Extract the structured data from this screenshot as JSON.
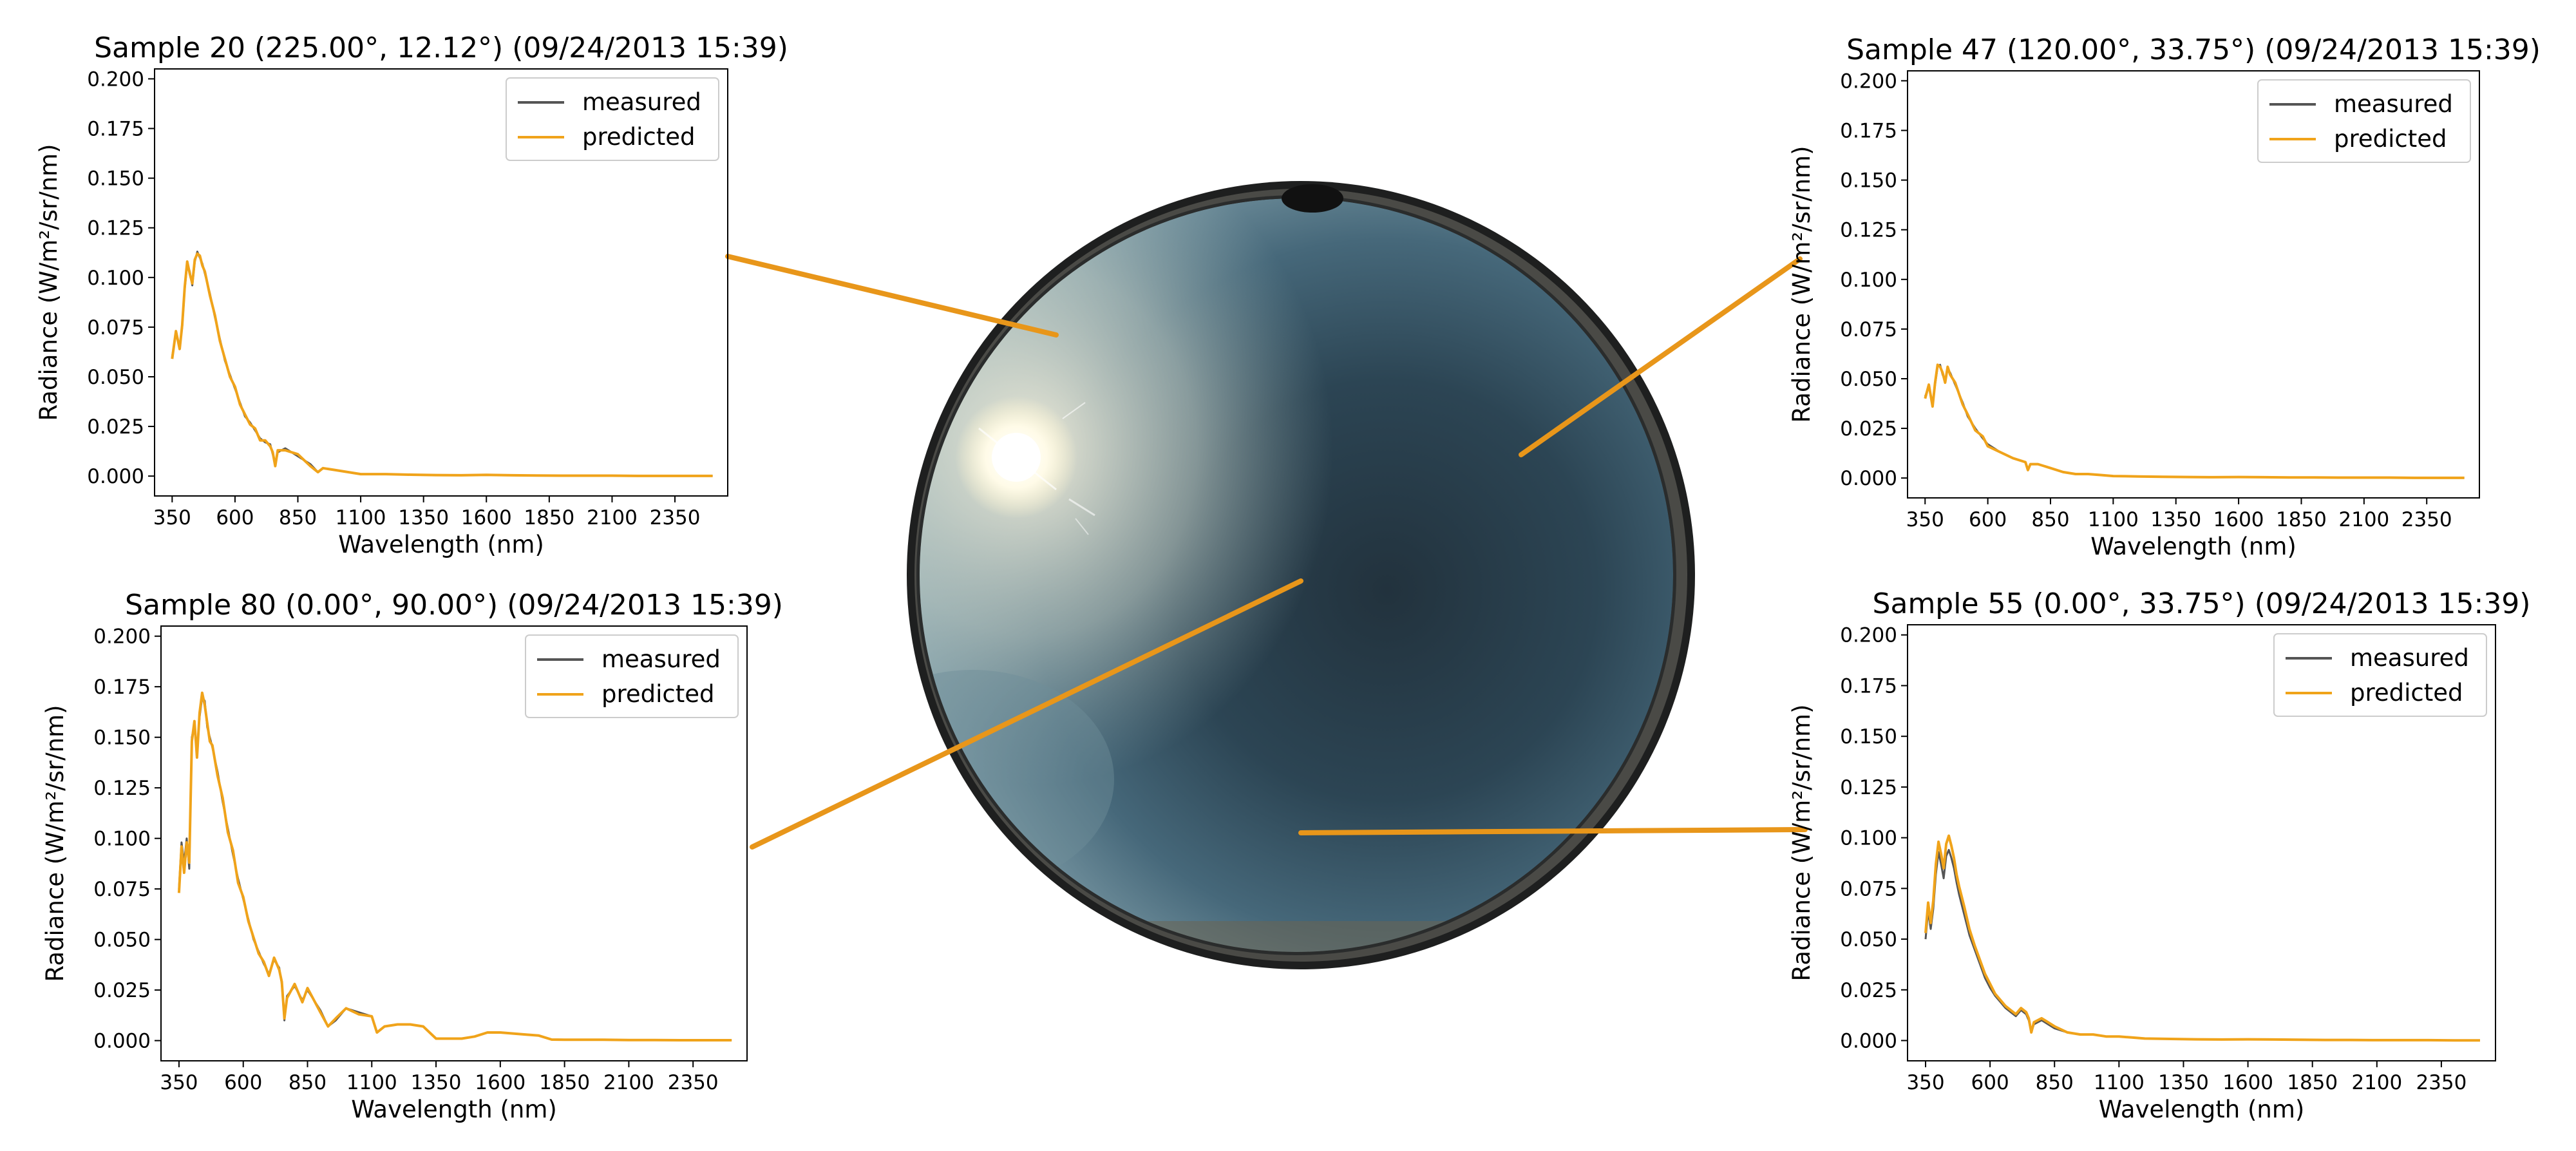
{
  "figure": {
    "background": "#ffffff",
    "measured_color": "#555555",
    "predicted_color": "#f0a31a",
    "connector_color": "#e8961a",
    "sky_image": {
      "type": "fisheye-sky-photo",
      "icons": [
        "sun-icon"
      ]
    }
  },
  "chart_data": [
    {
      "id": "sample-20",
      "type": "line",
      "title": "Sample 20 (225.00°, 12.12°) (09/24/2013 15:39)",
      "xlabel": "Wavelength (nm)",
      "ylabel": "Radiance (W/m²/sr/nm)",
      "xlim": [
        280,
        2560
      ],
      "ylim": [
        -0.01,
        0.205
      ],
      "xticks": [
        "350",
        "600",
        "850",
        "1100",
        "1350",
        "1600",
        "1850",
        "2100",
        "2350"
      ],
      "yticks": [
        "0.000",
        "0.025",
        "0.050",
        "0.075",
        "0.100",
        "0.125",
        "0.150",
        "0.175",
        "0.200"
      ],
      "legend": {
        "position": "top-right",
        "entries": [
          "measured",
          "predicted"
        ]
      },
      "series": [
        {
          "name": "measured",
          "x": [
            350,
            365,
            380,
            390,
            400,
            410,
            420,
            430,
            440,
            450,
            460,
            470,
            480,
            500,
            520,
            540,
            560,
            580,
            600,
            620,
            640,
            660,
            680,
            700,
            720,
            740,
            750,
            760,
            770,
            800,
            850,
            900,
            930,
            950,
            1000,
            1050,
            1100,
            1150,
            1200,
            1300,
            1400,
            1500,
            1600,
            1700,
            1800,
            1900,
            2000,
            2100,
            2200,
            2300,
            2400,
            2500
          ],
          "y": [
            0.06,
            0.072,
            0.065,
            0.075,
            0.094,
            0.107,
            0.103,
            0.096,
            0.108,
            0.113,
            0.11,
            0.107,
            0.102,
            0.092,
            0.08,
            0.069,
            0.058,
            0.051,
            0.044,
            0.037,
            0.03,
            0.027,
            0.023,
            0.019,
            0.017,
            0.016,
            0.011,
            0.006,
            0.012,
            0.014,
            0.01,
            0.006,
            0.002,
            0.004,
            0.003,
            0.002,
            0.001,
            0.001,
            0.001,
            0.0007,
            0.0005,
            0.0004,
            0.0006,
            0.0004,
            0.0003,
            0.0002,
            0.0002,
            0.0002,
            0.0001,
            0.0001,
            0.0001,
            0.0001
          ]
        },
        {
          "name": "predicted",
          "x": [
            350,
            365,
            380,
            390,
            400,
            410,
            420,
            430,
            440,
            450,
            460,
            470,
            480,
            500,
            520,
            540,
            560,
            580,
            600,
            620,
            640,
            660,
            680,
            700,
            720,
            740,
            750,
            760,
            770,
            800,
            850,
            900,
            930,
            950,
            1000,
            1050,
            1100,
            1150,
            1200,
            1300,
            1400,
            1500,
            1600,
            1700,
            1800,
            1900,
            2000,
            2100,
            2200,
            2300,
            2400,
            2500
          ],
          "y": [
            0.059,
            0.073,
            0.064,
            0.076,
            0.095,
            0.108,
            0.102,
            0.097,
            0.109,
            0.112,
            0.111,
            0.106,
            0.103,
            0.091,
            0.081,
            0.068,
            0.059,
            0.05,
            0.045,
            0.036,
            0.031,
            0.026,
            0.024,
            0.018,
            0.018,
            0.015,
            0.012,
            0.005,
            0.013,
            0.013,
            0.011,
            0.005,
            0.002,
            0.004,
            0.003,
            0.002,
            0.001,
            0.001,
            0.001,
            0.0007,
            0.0005,
            0.0004,
            0.0006,
            0.0004,
            0.0003,
            0.0002,
            0.0002,
            0.0002,
            0.0001,
            0.0001,
            0.0001,
            0.0001
          ]
        }
      ]
    },
    {
      "id": "sample-80",
      "type": "line",
      "title": "Sample 80 (0.00°, 90.00°) (09/24/2013 15:39)",
      "xlabel": "Wavelength (nm)",
      "ylabel": "Radiance (W/m²/sr/nm)",
      "xlim": [
        280,
        2560
      ],
      "ylim": [
        -0.01,
        0.205
      ],
      "xticks": [
        "350",
        "600",
        "850",
        "1100",
        "1350",
        "1600",
        "1850",
        "2100",
        "2350"
      ],
      "yticks": [
        "0.000",
        "0.025",
        "0.050",
        "0.075",
        "0.100",
        "0.125",
        "0.150",
        "0.175",
        "0.200"
      ],
      "legend": {
        "position": "top-right",
        "entries": [
          "measured",
          "predicted"
        ]
      },
      "series": [
        {
          "name": "measured",
          "x": [
            350,
            360,
            370,
            380,
            390,
            400,
            410,
            420,
            430,
            440,
            450,
            460,
            470,
            480,
            500,
            520,
            540,
            560,
            580,
            600,
            620,
            640,
            660,
            680,
            700,
            720,
            740,
            750,
            760,
            770,
            800,
            830,
            850,
            900,
            930,
            960,
            1000,
            1050,
            1100,
            1120,
            1150,
            1200,
            1250,
            1300,
            1350,
            1400,
            1450,
            1500,
            1550,
            1600,
            1650,
            1700,
            1750,
            1800,
            1850,
            1900,
            2000,
            2100,
            2200,
            2300,
            2400,
            2500
          ],
          "y": [
            0.075,
            0.098,
            0.088,
            0.1,
            0.085,
            0.15,
            0.156,
            0.143,
            0.16,
            0.17,
            0.168,
            0.155,
            0.15,
            0.145,
            0.133,
            0.118,
            0.105,
            0.092,
            0.08,
            0.07,
            0.06,
            0.05,
            0.044,
            0.038,
            0.033,
            0.04,
            0.036,
            0.028,
            0.01,
            0.022,
            0.027,
            0.02,
            0.025,
            0.015,
            0.007,
            0.01,
            0.016,
            0.014,
            0.012,
            0.004,
            0.007,
            0.008,
            0.008,
            0.007,
            0.001,
            0.001,
            0.001,
            0.002,
            0.004,
            0.004,
            0.0035,
            0.003,
            0.0025,
            0.0005,
            0.0004,
            0.0004,
            0.0004,
            0.0003,
            0.0003,
            0.0002,
            0.0002,
            0.0002
          ]
        },
        {
          "name": "predicted",
          "x": [
            350,
            360,
            370,
            380,
            390,
            400,
            410,
            420,
            430,
            440,
            450,
            460,
            470,
            480,
            500,
            520,
            540,
            560,
            580,
            600,
            620,
            640,
            660,
            680,
            700,
            720,
            740,
            750,
            760,
            770,
            800,
            830,
            850,
            900,
            930,
            960,
            1000,
            1050,
            1100,
            1120,
            1150,
            1200,
            1250,
            1300,
            1350,
            1400,
            1450,
            1500,
            1550,
            1600,
            1650,
            1700,
            1750,
            1800,
            1850,
            1900,
            2000,
            2100,
            2200,
            2300,
            2400,
            2500
          ],
          "y": [
            0.073,
            0.096,
            0.083,
            0.098,
            0.088,
            0.148,
            0.158,
            0.14,
            0.162,
            0.172,
            0.166,
            0.157,
            0.148,
            0.146,
            0.131,
            0.12,
            0.103,
            0.094,
            0.078,
            0.071,
            0.059,
            0.051,
            0.043,
            0.039,
            0.032,
            0.041,
            0.035,
            0.029,
            0.011,
            0.021,
            0.028,
            0.019,
            0.026,
            0.014,
            0.007,
            0.011,
            0.016,
            0.013,
            0.012,
            0.004,
            0.007,
            0.008,
            0.008,
            0.007,
            0.001,
            0.001,
            0.001,
            0.002,
            0.004,
            0.004,
            0.0035,
            0.003,
            0.0025,
            0.0005,
            0.0004,
            0.0004,
            0.0004,
            0.0003,
            0.0003,
            0.0002,
            0.0002,
            0.0002
          ]
        }
      ]
    },
    {
      "id": "sample-47",
      "type": "line",
      "title": "Sample 47 (120.00°, 33.75°) (09/24/2013 15:39)",
      "xlabel": "Wavelength (nm)",
      "ylabel": "Radiance (W/m²/sr/nm)",
      "xlim": [
        280,
        2560
      ],
      "ylim": [
        -0.01,
        0.205
      ],
      "xticks": [
        "350",
        "600",
        "850",
        "1100",
        "1350",
        "1600",
        "1850",
        "2100",
        "2350"
      ],
      "yticks": [
        "0.000",
        "0.025",
        "0.050",
        "0.075",
        "0.100",
        "0.125",
        "0.150",
        "0.175",
        "0.200"
      ],
      "legend": {
        "position": "top-right",
        "entries": [
          "measured",
          "predicted"
        ]
      },
      "series": [
        {
          "name": "measured",
          "x": [
            350,
            365,
            380,
            390,
            400,
            410,
            420,
            430,
            440,
            450,
            470,
            500,
            520,
            550,
            580,
            600,
            650,
            700,
            750,
            760,
            770,
            800,
            850,
            900,
            950,
            1000,
            1050,
            1100,
            1200,
            1300,
            1400,
            1500,
            1600,
            1700,
            1800,
            1900,
            2000,
            2100,
            2200,
            2300,
            2400,
            2500
          ],
          "y": [
            0.041,
            0.046,
            0.037,
            0.047,
            0.056,
            0.057,
            0.052,
            0.049,
            0.055,
            0.053,
            0.047,
            0.038,
            0.031,
            0.025,
            0.02,
            0.017,
            0.013,
            0.01,
            0.008,
            0.004,
            0.007,
            0.007,
            0.005,
            0.003,
            0.002,
            0.002,
            0.0015,
            0.001,
            0.0008,
            0.0006,
            0.0005,
            0.0004,
            0.0005,
            0.0004,
            0.0003,
            0.0003,
            0.0002,
            0.0002,
            0.0002,
            0.0001,
            0.0001,
            0.0001
          ]
        },
        {
          "name": "predicted",
          "x": [
            350,
            365,
            380,
            390,
            400,
            410,
            420,
            430,
            440,
            450,
            470,
            500,
            520,
            550,
            580,
            600,
            650,
            700,
            750,
            760,
            770,
            800,
            850,
            900,
            950,
            1000,
            1050,
            1100,
            1200,
            1300,
            1400,
            1500,
            1600,
            1700,
            1800,
            1900,
            2000,
            2100,
            2200,
            2300,
            2400,
            2500
          ],
          "y": [
            0.04,
            0.047,
            0.036,
            0.048,
            0.057,
            0.056,
            0.053,
            0.048,
            0.056,
            0.052,
            0.048,
            0.037,
            0.032,
            0.024,
            0.021,
            0.016,
            0.013,
            0.01,
            0.008,
            0.004,
            0.007,
            0.007,
            0.005,
            0.003,
            0.002,
            0.002,
            0.0015,
            0.001,
            0.0008,
            0.0006,
            0.0005,
            0.0004,
            0.0005,
            0.0004,
            0.0003,
            0.0003,
            0.0002,
            0.0002,
            0.0002,
            0.0001,
            0.0001,
            0.0001
          ]
        }
      ]
    },
    {
      "id": "sample-55",
      "type": "line",
      "title": "Sample 55 (0.00°, 33.75°) (09/24/2013 15:39)",
      "xlabel": "Wavelength (nm)",
      "ylabel": "Radiance (W/m²/sr/nm)",
      "xlim": [
        280,
        2560
      ],
      "ylim": [
        -0.01,
        0.205
      ],
      "xticks": [
        "350",
        "600",
        "850",
        "1100",
        "1350",
        "1600",
        "1850",
        "2100",
        "2350"
      ],
      "yticks": [
        "0.000",
        "0.025",
        "0.050",
        "0.075",
        "0.100",
        "0.125",
        "0.150",
        "0.175",
        "0.200"
      ],
      "legend": {
        "position": "top-right",
        "entries": [
          "measured",
          "predicted"
        ]
      },
      "series": [
        {
          "name": "measured",
          "x": [
            350,
            360,
            370,
            380,
            390,
            400,
            410,
            420,
            430,
            440,
            450,
            460,
            470,
            480,
            500,
            520,
            540,
            560,
            580,
            600,
            620,
            640,
            660,
            680,
            700,
            720,
            740,
            750,
            760,
            770,
            800,
            850,
            900,
            950,
            1000,
            1050,
            1100,
            1150,
            1200,
            1300,
            1400,
            1500,
            1600,
            1700,
            1800,
            1900,
            2000,
            2100,
            2200,
            2300,
            2400,
            2500
          ],
          "y": [
            0.05,
            0.064,
            0.055,
            0.065,
            0.082,
            0.093,
            0.087,
            0.08,
            0.091,
            0.094,
            0.09,
            0.085,
            0.078,
            0.072,
            0.062,
            0.052,
            0.045,
            0.038,
            0.031,
            0.026,
            0.022,
            0.019,
            0.016,
            0.014,
            0.012,
            0.015,
            0.013,
            0.01,
            0.004,
            0.008,
            0.01,
            0.006,
            0.004,
            0.003,
            0.003,
            0.002,
            0.002,
            0.0015,
            0.001,
            0.0008,
            0.0006,
            0.0005,
            0.0006,
            0.0005,
            0.0004,
            0.0003,
            0.0003,
            0.0002,
            0.0002,
            0.0002,
            0.0001,
            0.0001
          ]
        },
        {
          "name": "predicted",
          "x": [
            350,
            360,
            370,
            380,
            390,
            400,
            410,
            420,
            430,
            440,
            450,
            460,
            470,
            480,
            500,
            520,
            540,
            560,
            580,
            600,
            620,
            640,
            660,
            680,
            700,
            720,
            740,
            750,
            760,
            770,
            800,
            850,
            900,
            950,
            1000,
            1050,
            1100,
            1150,
            1200,
            1300,
            1400,
            1500,
            1600,
            1700,
            1800,
            1900,
            2000,
            2100,
            2200,
            2300,
            2400,
            2500
          ],
          "y": [
            0.053,
            0.068,
            0.058,
            0.069,
            0.087,
            0.098,
            0.092,
            0.085,
            0.097,
            0.101,
            0.096,
            0.09,
            0.082,
            0.076,
            0.066,
            0.055,
            0.047,
            0.04,
            0.033,
            0.028,
            0.023,
            0.02,
            0.017,
            0.015,
            0.013,
            0.016,
            0.014,
            0.011,
            0.004,
            0.009,
            0.011,
            0.007,
            0.004,
            0.003,
            0.003,
            0.002,
            0.002,
            0.0015,
            0.001,
            0.0008,
            0.0006,
            0.0005,
            0.0006,
            0.0005,
            0.0004,
            0.0003,
            0.0003,
            0.0002,
            0.0002,
            0.0002,
            0.0001,
            0.0001
          ]
        }
      ]
    }
  ]
}
